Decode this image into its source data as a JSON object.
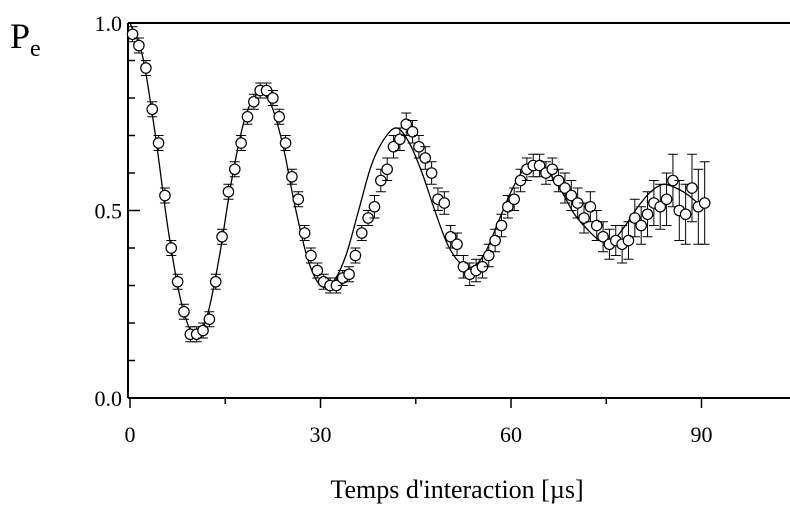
{
  "chart_data": {
    "type": "scatter",
    "title": "",
    "xlabel": "Temps d'interaction [µs]",
    "ylabel": "P",
    "ylabel_subscript": "e",
    "xlim": [
      0,
      93
    ],
    "ylim": [
      0.0,
      1.0
    ],
    "xticks": [
      0,
      30,
      60,
      90
    ],
    "xtick_labels": [
      "0",
      "30",
      "60",
      "90"
    ],
    "yticks": [
      0.0,
      0.5,
      1.0
    ],
    "ytick_labels": [
      "0.0",
      "0.5",
      "1.0"
    ],
    "grid": false,
    "legend": "none",
    "series": [
      {
        "marker": "open-circle",
        "x": [
          0.4,
          1.4,
          2.5,
          3.5,
          4.5,
          5.5,
          6.5,
          7.5,
          8.5,
          9.5,
          10.5,
          11.5,
          12.5,
          13.5,
          14.5,
          15.5,
          16.5,
          17.5,
          18.5,
          19.5,
          20.5,
          21.5,
          22.5,
          23.5,
          24.5,
          25.5,
          26.5,
          27.5,
          28.5,
          29.5,
          30.5,
          31.5,
          32.5,
          33.5,
          34.5,
          35.5,
          36.5,
          37.5,
          38.5,
          39.5,
          40.5,
          41.5,
          42.5,
          43.5,
          44.5,
          45.5,
          46.5,
          47.5,
          48.5,
          49.5,
          50.5,
          51.5,
          52.5,
          53.5,
          54.5,
          55.5,
          56.5,
          57.5,
          58.5,
          59.5,
          60.5,
          61.5,
          62.5,
          63.5,
          64.5,
          65.5,
          66.5,
          67.5,
          68.5,
          69.5,
          70.5,
          71.5,
          72.5,
          73.5,
          74.5,
          75.5,
          76.5,
          77.5,
          78.5,
          79.5,
          80.5,
          81.5,
          82.5,
          83.5,
          84.5,
          85.5,
          86.5,
          87.5,
          88.5,
          89.5,
          90.5
        ],
        "y": [
          0.97,
          0.94,
          0.88,
          0.77,
          0.68,
          0.54,
          0.4,
          0.31,
          0.23,
          0.17,
          0.17,
          0.18,
          0.21,
          0.31,
          0.43,
          0.55,
          0.61,
          0.68,
          0.75,
          0.79,
          0.82,
          0.82,
          0.8,
          0.75,
          0.68,
          0.59,
          0.53,
          0.44,
          0.38,
          0.34,
          0.31,
          0.3,
          0.3,
          0.32,
          0.33,
          0.38,
          0.44,
          0.48,
          0.51,
          0.58,
          0.61,
          0.67,
          0.69,
          0.73,
          0.71,
          0.67,
          0.64,
          0.6,
          0.53,
          0.52,
          0.43,
          0.41,
          0.35,
          0.33,
          0.34,
          0.35,
          0.38,
          0.42,
          0.46,
          0.51,
          0.53,
          0.58,
          0.61,
          0.62,
          0.62,
          0.6,
          0.61,
          0.58,
          0.56,
          0.54,
          0.52,
          0.48,
          0.51,
          0.46,
          0.43,
          0.41,
          0.42,
          0.41,
          0.42,
          0.48,
          0.46,
          0.49,
          0.52,
          0.51,
          0.53,
          0.58,
          0.5,
          0.49,
          0.56,
          0.51,
          0.52
        ],
        "err": [
          0.02,
          0.02,
          0.02,
          0.02,
          0.02,
          0.02,
          0.02,
          0.02,
          0.02,
          0.02,
          0.02,
          0.02,
          0.02,
          0.02,
          0.02,
          0.02,
          0.02,
          0.02,
          0.02,
          0.02,
          0.02,
          0.02,
          0.02,
          0.02,
          0.02,
          0.02,
          0.02,
          0.02,
          0.02,
          0.02,
          0.02,
          0.02,
          0.02,
          0.02,
          0.02,
          0.02,
          0.02,
          0.02,
          0.03,
          0.03,
          0.03,
          0.03,
          0.03,
          0.03,
          0.03,
          0.03,
          0.03,
          0.03,
          0.03,
          0.03,
          0.03,
          0.03,
          0.03,
          0.03,
          0.03,
          0.03,
          0.03,
          0.03,
          0.03,
          0.03,
          0.03,
          0.03,
          0.03,
          0.03,
          0.03,
          0.03,
          0.03,
          0.03,
          0.04,
          0.04,
          0.04,
          0.04,
          0.04,
          0.04,
          0.04,
          0.04,
          0.04,
          0.05,
          0.05,
          0.05,
          0.05,
          0.06,
          0.06,
          0.06,
          0.07,
          0.07,
          0.08,
          0.08,
          0.09,
          0.1,
          0.11
        ]
      }
    ],
    "fit_curve": {
      "style": "solid-line",
      "x": [
        0,
        2,
        4,
        6,
        8,
        10,
        12,
        14,
        16,
        18,
        20,
        22,
        24,
        26,
        28,
        30,
        32,
        34,
        36,
        38,
        40,
        42,
        44,
        46,
        48,
        50,
        52,
        54,
        56,
        58,
        60,
        62,
        64,
        66,
        68,
        70,
        72,
        74,
        76,
        78,
        80,
        82,
        84,
        86,
        88,
        90
      ],
      "y": [
        1.0,
        0.91,
        0.7,
        0.45,
        0.26,
        0.17,
        0.21,
        0.37,
        0.58,
        0.74,
        0.81,
        0.79,
        0.68,
        0.51,
        0.37,
        0.3,
        0.31,
        0.38,
        0.5,
        0.62,
        0.69,
        0.72,
        0.68,
        0.6,
        0.5,
        0.41,
        0.36,
        0.35,
        0.39,
        0.47,
        0.55,
        0.61,
        0.63,
        0.6,
        0.55,
        0.49,
        0.45,
        0.42,
        0.42,
        0.46,
        0.51,
        0.55,
        0.57,
        0.56,
        0.54,
        0.51
      ]
    }
  }
}
